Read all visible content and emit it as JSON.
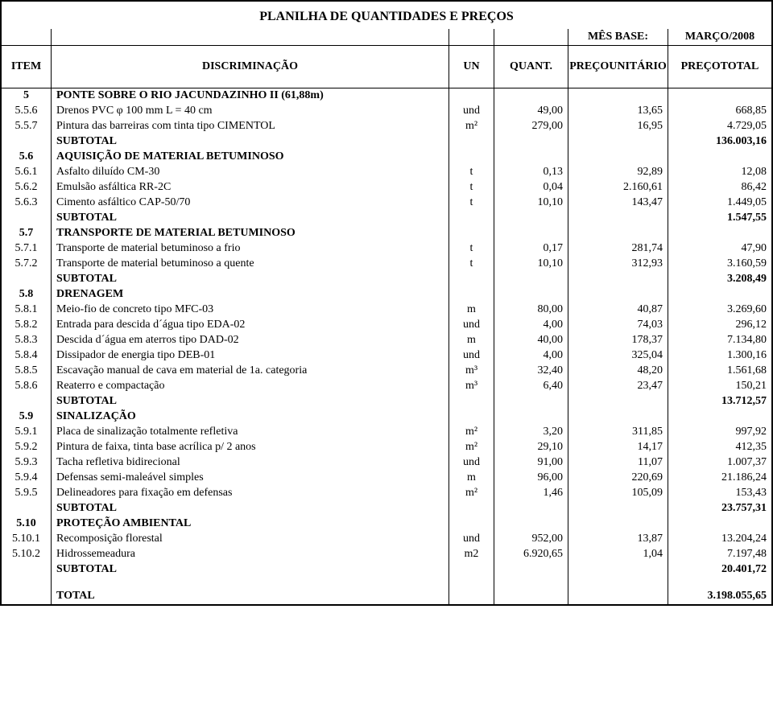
{
  "title": "PLANILHA DE QUANTIDADES E PREÇOS",
  "header": {
    "mes_base_label": "MÊS BASE:",
    "mes_base_value": "MARÇO/2008",
    "item": "ITEM",
    "discriminacao": "DISCRIMINAÇÃO",
    "un": "UN",
    "quant": "QUANT.",
    "preco_unit_l1": "PREÇO",
    "preco_unit_l2": "UNITÁRIO",
    "preco_tot_l1": "PREÇO",
    "preco_tot_l2": "TOTAL"
  },
  "rows": [
    {
      "type": "section",
      "item": "5",
      "desc": "PONTE SOBRE O RIO JACUNDAZINHO II (61,88m)"
    },
    {
      "type": "data",
      "item": "5.5.6",
      "desc": "Drenos PVC φ 100 mm L = 40 cm",
      "un": "und",
      "qt": "49,00",
      "pu": "13,65",
      "pt": "668,85"
    },
    {
      "type": "data",
      "item": "5.5.7",
      "desc": "Pintura das barreiras com tinta tipo CIMENTOL",
      "un": "m²",
      "qt": "279,00",
      "pu": "16,95",
      "pt": "4.729,05"
    },
    {
      "type": "subtotal",
      "desc": "SUBTOTAL",
      "pt": "136.003,16"
    },
    {
      "type": "section",
      "item": "5.6",
      "desc": "AQUISIÇÃO DE MATERIAL BETUMINOSO"
    },
    {
      "type": "data",
      "item": "5.6.1",
      "desc": "Asfalto diluído CM-30",
      "un": "t",
      "qt": "0,13",
      "pu": "92,89",
      "pt": "12,08"
    },
    {
      "type": "data",
      "item": "5.6.2",
      "desc": "Emulsão asfáltica RR-2C",
      "un": "t",
      "qt": "0,04",
      "pu": "2.160,61",
      "pt": "86,42"
    },
    {
      "type": "data",
      "item": "5.6.3",
      "desc": "Cimento asfáltico CAP-50/70",
      "un": "t",
      "qt": "10,10",
      "pu": "143,47",
      "pt": "1.449,05"
    },
    {
      "type": "subtotal",
      "desc": "SUBTOTAL",
      "pt": "1.547,55"
    },
    {
      "type": "section",
      "item": "5.7",
      "desc": "TRANSPORTE DE MATERIAL BETUMINOSO"
    },
    {
      "type": "data",
      "item": "5.7.1",
      "desc": "Transporte de material betuminoso a frio",
      "un": "t",
      "qt": "0,17",
      "pu": "281,74",
      "pt": "47,90"
    },
    {
      "type": "data",
      "item": "5.7.2",
      "desc": "Transporte de material betuminoso a quente",
      "un": "t",
      "qt": "10,10",
      "pu": "312,93",
      "pt": "3.160,59"
    },
    {
      "type": "subtotal",
      "desc": "SUBTOTAL",
      "pt": "3.208,49"
    },
    {
      "type": "section",
      "item": "5.8",
      "desc": "DRENAGEM"
    },
    {
      "type": "data",
      "item": "5.8.1",
      "desc": "Meio-fio de concreto tipo MFC-03",
      "un": "m",
      "qt": "80,00",
      "pu": "40,87",
      "pt": "3.269,60"
    },
    {
      "type": "data",
      "item": "5.8.2",
      "desc": "Entrada para descida d´água tipo EDA-02",
      "un": "und",
      "qt": "4,00",
      "pu": "74,03",
      "pt": "296,12"
    },
    {
      "type": "data",
      "item": "5.8.3",
      "desc": "Descida d´água em aterros tipo DAD-02",
      "un": "m",
      "qt": "40,00",
      "pu": "178,37",
      "pt": "7.134,80"
    },
    {
      "type": "data",
      "item": "5.8.4",
      "desc": "Dissipador de energia tipo DEB-01",
      "un": "und",
      "qt": "4,00",
      "pu": "325,04",
      "pt": "1.300,16"
    },
    {
      "type": "data",
      "item": "5.8.5",
      "desc": "Escavação manual de cava em material de 1a. categoria",
      "un": "m³",
      "qt": "32,40",
      "pu": "48,20",
      "pt": "1.561,68"
    },
    {
      "type": "data",
      "item": "5.8.6",
      "desc": "Reaterro e compactação",
      "un": "m³",
      "qt": "6,40",
      "pu": "23,47",
      "pt": "150,21"
    },
    {
      "type": "subtotal",
      "desc": "SUBTOTAL",
      "pt": "13.712,57"
    },
    {
      "type": "section",
      "item": "5.9",
      "desc": "SINALIZAÇÃO"
    },
    {
      "type": "data",
      "item": "5.9.1",
      "desc": "Placa de sinalização totalmente refletiva",
      "un": "m²",
      "qt": "3,20",
      "pu": "311,85",
      "pt": "997,92"
    },
    {
      "type": "data",
      "item": "5.9.2",
      "desc": "Pintura de faixa, tinta base acrílica p/ 2 anos",
      "un": "m²",
      "qt": "29,10",
      "pu": "14,17",
      "pt": "412,35"
    },
    {
      "type": "data",
      "item": "5.9.3",
      "desc": "Tacha refletiva bidirecional",
      "un": "und",
      "qt": "91,00",
      "pu": "11,07",
      "pt": "1.007,37"
    },
    {
      "type": "data",
      "item": "5.9.4",
      "desc": "Defensas semi-maleável simples",
      "un": "m",
      "qt": "96,00",
      "pu": "220,69",
      "pt": "21.186,24"
    },
    {
      "type": "data",
      "item": "5.9.5",
      "desc": "Delineadores para fixação em defensas",
      "un": "m²",
      "qt": "1,46",
      "pu": "105,09",
      "pt": "153,43"
    },
    {
      "type": "subtotal",
      "desc": "SUBTOTAL",
      "pt": "23.757,31"
    },
    {
      "type": "section",
      "item": "5.10",
      "desc": "PROTEÇÃO AMBIENTAL"
    },
    {
      "type": "data",
      "item": "5.10.1",
      "desc": "Recomposição florestal",
      "un": "und",
      "qt": "952,00",
      "pu": "13,87",
      "pt": "13.204,24"
    },
    {
      "type": "data",
      "item": "5.10.2",
      "desc": "Hidrossemeadura",
      "un": "m2",
      "qt": "6.920,65",
      "pu": "1,04",
      "pt": "7.197,48"
    },
    {
      "type": "subtotal",
      "desc": "SUBTOTAL",
      "pt": "20.401,72"
    },
    {
      "type": "spacer"
    },
    {
      "type": "total",
      "desc": "TOTAL",
      "pt": "3.198.055,65"
    }
  ]
}
